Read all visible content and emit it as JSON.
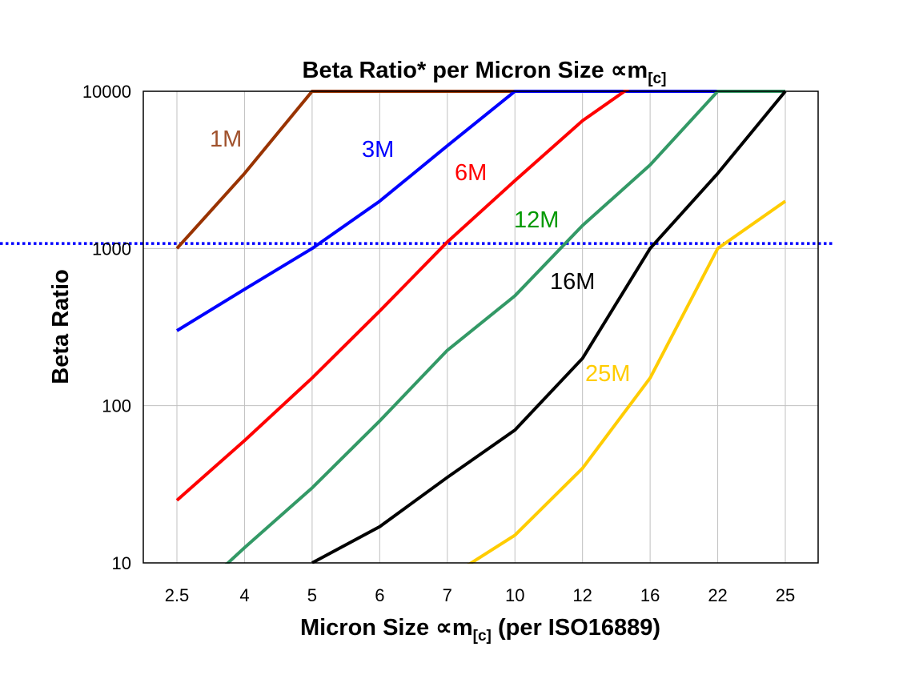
{
  "chart_data": {
    "type": "line",
    "title": "Beta Ratio* per Micron Size ∝m",
    "title_subscript": "[c]",
    "xlabel": "Micron Size ∝m",
    "xlabel_subscript": "[c]",
    "xlabel_suffix": " (per ISO16889)",
    "ylabel": "Beta Ratio",
    "y_scale": "log",
    "ylim": [
      10,
      10000
    ],
    "yticks": [
      "10",
      "100",
      "1000",
      "10000"
    ],
    "categories": [
      "2.5",
      "4",
      "5",
      "6",
      "7",
      "10",
      "12",
      "16",
      "22",
      "25"
    ],
    "grid": true,
    "reference_line": {
      "value": 1075,
      "style": "dotted",
      "color": "#0000ff"
    },
    "series": [
      {
        "name": "1M",
        "color": "#993300",
        "label_color": "#a0522d",
        "values": [
          1000,
          3000,
          10000,
          10000,
          10000,
          10000,
          10000,
          10000,
          10000,
          10000
        ]
      },
      {
        "name": "3M",
        "color": "#0000ff",
        "label_color": "#0000ff",
        "values": [
          300,
          550,
          1000,
          2000,
          4500,
          10000,
          10000,
          10000,
          10000,
          10000
        ]
      },
      {
        "name": "6M",
        "color": "#ff0000",
        "label_color": "#ff0000",
        "values": [
          25,
          60,
          150,
          400,
          1100,
          2700,
          6500,
          13000,
          13000,
          13000
        ]
      },
      {
        "name": "12M",
        "color": "#339966",
        "label_color": "#009900",
        "values": [
          5,
          12.5,
          30,
          80,
          225,
          500,
          1400,
          3400,
          10000,
          10000
        ]
      },
      {
        "name": "16M",
        "color": "#000000",
        "label_color": "#000000",
        "values": [
          null,
          null,
          10,
          17,
          35,
          70,
          200,
          1000,
          3000,
          10000
        ]
      },
      {
        "name": "25M",
        "color": "#ffcc00",
        "label_color": "#ffcc00",
        "values": [
          null,
          null,
          null,
          null,
          8,
          15,
          40,
          150,
          1000,
          2000
        ]
      }
    ]
  }
}
